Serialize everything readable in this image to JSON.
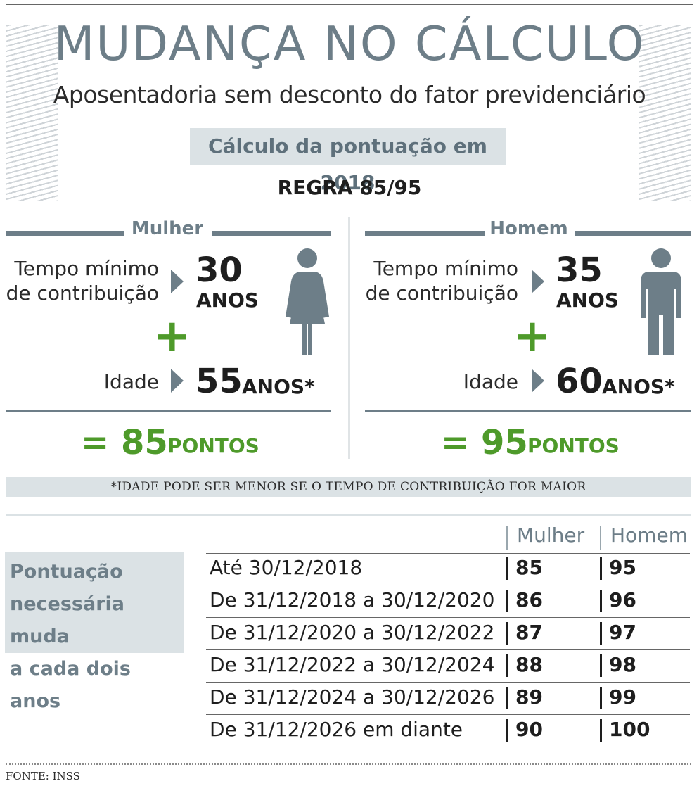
{
  "header": {
    "title": "MUDANÇA NO CÁLCULO",
    "subtitle": "Aposentadoria sem desconto do fator previdenciário",
    "calc_label": "Cálculo da pontuação em 2018",
    "rule": "REGRA 85/95"
  },
  "female": {
    "heading": "Mulher",
    "contrib_label_1": "Tempo mínimo",
    "contrib_label_2": "de contribuição",
    "contrib_value": "30",
    "contrib_unit": "ANOS",
    "plus": "+",
    "age_label": "Idade",
    "age_value": "55",
    "age_unit": "ANOS*",
    "equals": "=",
    "points_value": "85",
    "points_unit": "PONTOS"
  },
  "male": {
    "heading": "Homem",
    "contrib_label_1": "Tempo mínimo",
    "contrib_label_2": "de contribuição",
    "contrib_value": "35",
    "contrib_unit": "ANOS",
    "plus": "+",
    "age_label": "Idade",
    "age_value": "60",
    "age_unit": "ANOS*",
    "equals": "=",
    "points_value": "95",
    "points_unit": "PONTOS"
  },
  "note": "*IDADE PODE SER MENOR SE O TEMPO DE CONTRIBUIÇÃO FOR MAIOR",
  "table": {
    "side_label_1": "Pontuação",
    "side_label_2": "necessária muda",
    "side_label_3": "a cada dois anos",
    "col_female": "Mulher",
    "col_male": "Homem",
    "rows": [
      {
        "period": "Até 30/12/2018",
        "female": "85",
        "male": "95"
      },
      {
        "period": "De 31/12/2018 a 30/12/2020",
        "female": "86",
        "male": "96"
      },
      {
        "period": "De 31/12/2020 a 30/12/2022",
        "female": "87",
        "male": "97"
      },
      {
        "period": "De 31/12/2022 a 30/12/2024",
        "female": "88",
        "male": "98"
      },
      {
        "period": "De 31/12/2024 a 30/12/2026",
        "female": "89",
        "male": "99"
      },
      {
        "period": "De 31/12/2026 em diante",
        "female": "90",
        "male": "100"
      }
    ]
  },
  "source": "FONTE: INSS",
  "colors": {
    "accent_gray": "#6d7e88",
    "accent_green": "#4e9a2a",
    "box_bg": "#dbe2e5"
  }
}
